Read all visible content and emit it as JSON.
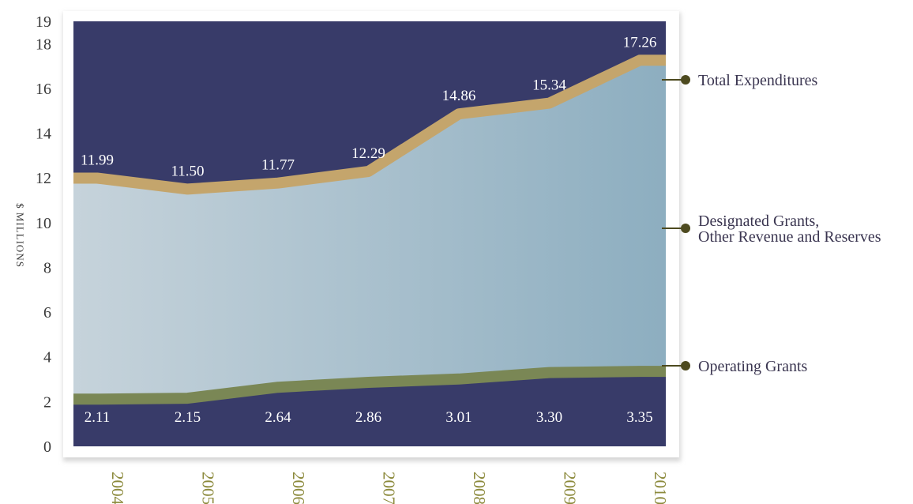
{
  "chart_data": {
    "type": "area",
    "ylabel": "$ MILLIONS",
    "ylim": [
      0,
      19
    ],
    "yticks": [
      0,
      2,
      4,
      6,
      8,
      10,
      12,
      14,
      16,
      18,
      19
    ],
    "categories": [
      "2004",
      "2005",
      "2006",
      "2007",
      "2008",
      "2009",
      "2010"
    ],
    "series": [
      {
        "name": "Total Expenditures",
        "values": [
          11.99,
          11.5,
          11.77,
          12.29,
          14.86,
          15.34,
          17.26
        ],
        "labels": [
          "11.99",
          "11.50",
          "11.77",
          "12.29",
          "14.86",
          "15.34",
          "17.26"
        ]
      },
      {
        "name": "Designated Grants, Other Revenue and Reserves",
        "name_lines": [
          "Designated Grants,",
          "Other Revenue and Reserves"
        ]
      },
      {
        "name": "Operating Grants",
        "values": [
          2.11,
          2.15,
          2.64,
          2.86,
          3.01,
          3.3,
          3.35
        ],
        "labels": [
          "2.11",
          "2.15",
          "2.64",
          "2.86",
          "3.01",
          "3.30",
          "3.35"
        ]
      }
    ],
    "colors": {
      "background": "#383b69",
      "total_band": "#c4a56c",
      "operating_band": "#7a8755",
      "area_light": "#c6d3db",
      "area_dark": "#8daec0",
      "marker": "#4d4a1f"
    },
    "grid": false
  }
}
